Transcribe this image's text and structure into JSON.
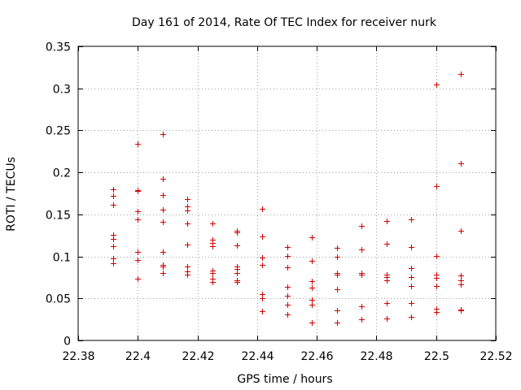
{
  "chart_data": {
    "type": "scatter",
    "title": "Day 161 of 2014, Rate Of TEC Index for receiver nurk",
    "xlabel": "GPS time / hours",
    "ylabel": "ROTI / TECUs",
    "xlim": [
      22.38,
      22.52
    ],
    "ylim": [
      0,
      0.35
    ],
    "xticks": [
      "22.38",
      "22.4",
      "22.42",
      "22.44",
      "22.46",
      "22.48",
      "22.5",
      "22.52"
    ],
    "xtick_values": [
      22.38,
      22.4,
      22.42,
      22.44,
      22.46,
      22.48,
      22.5,
      22.52
    ],
    "yticks": [
      "0",
      "0.05",
      "0.1",
      "0.15",
      "0.2",
      "0.25",
      "0.3",
      "0.35"
    ],
    "ytick_values": [
      0,
      0.05,
      0.1,
      0.15,
      0.2,
      0.25,
      0.3,
      0.35
    ],
    "grid": true,
    "marker": "+",
    "color": "#d00000",
    "series": [
      {
        "name": "ROTI",
        "points": [
          [
            22.3917,
            0.18
          ],
          [
            22.3917,
            0.172
          ],
          [
            22.3917,
            0.161
          ],
          [
            22.3917,
            0.126
          ],
          [
            22.3917,
            0.121
          ],
          [
            22.3917,
            0.112
          ],
          [
            22.3917,
            0.098
          ],
          [
            22.3917,
            0.092
          ],
          [
            22.4,
            0.234
          ],
          [
            22.4,
            0.179
          ],
          [
            22.4,
            0.178
          ],
          [
            22.4,
            0.154
          ],
          [
            22.4,
            0.144
          ],
          [
            22.4,
            0.105
          ],
          [
            22.4,
            0.096
          ],
          [
            22.4,
            0.073
          ],
          [
            22.4083,
            0.246
          ],
          [
            22.4083,
            0.192
          ],
          [
            22.4083,
            0.173
          ],
          [
            22.4083,
            0.156
          ],
          [
            22.4083,
            0.141
          ],
          [
            22.4083,
            0.105
          ],
          [
            22.4083,
            0.09
          ],
          [
            22.4083,
            0.088
          ],
          [
            22.4083,
            0.08
          ],
          [
            22.4167,
            0.168
          ],
          [
            22.4167,
            0.16
          ],
          [
            22.4167,
            0.155
          ],
          [
            22.4167,
            0.139
          ],
          [
            22.4167,
            0.114
          ],
          [
            22.4167,
            0.088
          ],
          [
            22.4167,
            0.082
          ],
          [
            22.4167,
            0.078
          ],
          [
            22.425,
            0.139
          ],
          [
            22.425,
            0.12
          ],
          [
            22.425,
            0.116
          ],
          [
            22.425,
            0.112
          ],
          [
            22.425,
            0.083
          ],
          [
            22.425,
            0.08
          ],
          [
            22.425,
            0.073
          ],
          [
            22.425,
            0.07
          ],
          [
            22.4333,
            0.131
          ],
          [
            22.4333,
            0.129
          ],
          [
            22.4333,
            0.113
          ],
          [
            22.4333,
            0.088
          ],
          [
            22.4333,
            0.085
          ],
          [
            22.4333,
            0.08
          ],
          [
            22.4333,
            0.072
          ],
          [
            22.4333,
            0.07
          ],
          [
            22.4417,
            0.157
          ],
          [
            22.4417,
            0.124
          ],
          [
            22.4417,
            0.099
          ],
          [
            22.4417,
            0.09
          ],
          [
            22.4417,
            0.055
          ],
          [
            22.4417,
            0.05
          ],
          [
            22.4417,
            0.035
          ],
          [
            22.45,
            0.111
          ],
          [
            22.45,
            0.101
          ],
          [
            22.45,
            0.087
          ],
          [
            22.45,
            0.064
          ],
          [
            22.45,
            0.053
          ],
          [
            22.45,
            0.043
          ],
          [
            22.45,
            0.031
          ],
          [
            22.4583,
            0.123
          ],
          [
            22.4583,
            0.095
          ],
          [
            22.4583,
            0.071
          ],
          [
            22.4583,
            0.063
          ],
          [
            22.4583,
            0.048
          ],
          [
            22.4583,
            0.043
          ],
          [
            22.4583,
            0.021
          ],
          [
            22.4667,
            0.11
          ],
          [
            22.4667,
            0.1
          ],
          [
            22.4667,
            0.08
          ],
          [
            22.4667,
            0.078
          ],
          [
            22.4667,
            0.061
          ],
          [
            22.4667,
            0.036
          ],
          [
            22.4667,
            0.021
          ],
          [
            22.475,
            0.136
          ],
          [
            22.475,
            0.108
          ],
          [
            22.475,
            0.08
          ],
          [
            22.475,
            0.078
          ],
          [
            22.475,
            0.041
          ],
          [
            22.475,
            0.025
          ],
          [
            22.4833,
            0.142
          ],
          [
            22.4833,
            0.115
          ],
          [
            22.4833,
            0.078
          ],
          [
            22.4833,
            0.075
          ],
          [
            22.4833,
            0.072
          ],
          [
            22.4833,
            0.044
          ],
          [
            22.4833,
            0.026
          ],
          [
            22.4917,
            0.144
          ],
          [
            22.4917,
            0.111
          ],
          [
            22.4917,
            0.086
          ],
          [
            22.4917,
            0.075
          ],
          [
            22.4917,
            0.065
          ],
          [
            22.4917,
            0.044
          ],
          [
            22.4917,
            0.028
          ],
          [
            22.5,
            0.305
          ],
          [
            22.5,
            0.184
          ],
          [
            22.5,
            0.101
          ],
          [
            22.5,
            0.078
          ],
          [
            22.5,
            0.074
          ],
          [
            22.5,
            0.065
          ],
          [
            22.5,
            0.038
          ],
          [
            22.5,
            0.034
          ],
          [
            22.5083,
            0.317
          ],
          [
            22.5083,
            0.211
          ],
          [
            22.5083,
            0.131
          ],
          [
            22.5083,
            0.077
          ],
          [
            22.5083,
            0.072
          ],
          [
            22.5083,
            0.067
          ],
          [
            22.5083,
            0.037
          ],
          [
            22.5083,
            0.036
          ]
        ]
      }
    ]
  }
}
